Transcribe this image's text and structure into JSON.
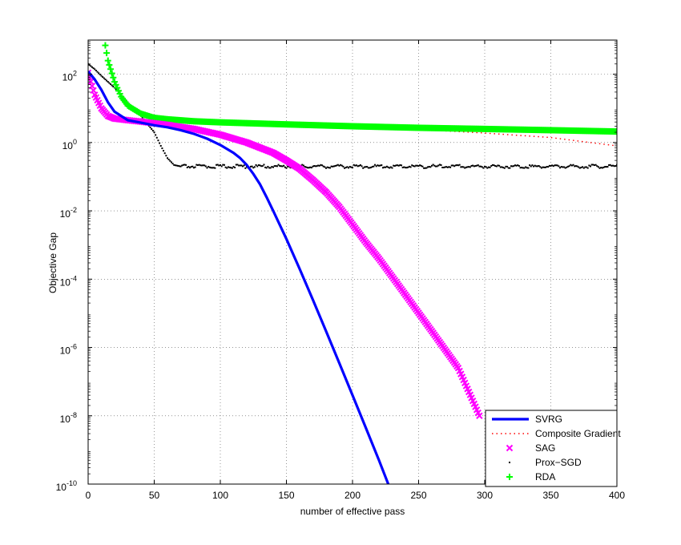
{
  "chart_data": {
    "type": "line",
    "title": "",
    "xlabel": "number of effective pass",
    "ylabel": "Objective Gap",
    "xlim": [
      0,
      400
    ],
    "ylim_log10": [
      -10,
      3
    ],
    "yscale": "log",
    "grid": true,
    "legend_position": "bottom-right",
    "x_ticks": [
      "0",
      "50",
      "100",
      "150",
      "200",
      "250",
      "300",
      "350",
      "400"
    ],
    "y_ticks": [
      {
        "base": "10",
        "exp": "2"
      },
      {
        "base": "10",
        "exp": "0"
      },
      {
        "base": "10",
        "exp": "-2"
      },
      {
        "base": "10",
        "exp": "-4"
      },
      {
        "base": "10",
        "exp": "-6"
      },
      {
        "base": "10",
        "exp": "-8"
      },
      {
        "base": "10",
        "exp": "-10"
      }
    ],
    "series": [
      {
        "name": "SVRG",
        "color": "#0000ff",
        "style": "solid-thick",
        "x": [
          0,
          5,
          10,
          15,
          20,
          30,
          40,
          50,
          60,
          70,
          80,
          90,
          100,
          110,
          115,
          120,
          125,
          130,
          135,
          140,
          150,
          160,
          170,
          180,
          190,
          200,
          210,
          220,
          227
        ],
        "y": [
          120,
          70,
          35,
          15,
          8,
          4.5,
          3.8,
          3.2,
          2.8,
          2.3,
          1.8,
          1.3,
          0.85,
          0.5,
          0.35,
          0.22,
          0.12,
          0.06,
          0.025,
          0.01,
          0.0015,
          0.0002,
          2.5e-05,
          3e-06,
          3.5e-07,
          4e-08,
          4.5e-09,
          5e-10,
          1e-10
        ]
      },
      {
        "name": "Composite Gradient",
        "color": "#ff0000",
        "style": "dotted",
        "x": [
          0,
          5,
          10,
          15,
          20,
          30,
          40,
          60,
          100,
          150,
          200,
          250,
          300,
          350,
          400
        ],
        "y": [
          100,
          30,
          12,
          7,
          5.5,
          4.8,
          4.4,
          4,
          3.6,
          3.2,
          2.8,
          2.4,
          1.9,
          1.4,
          0.8
        ]
      },
      {
        "name": "SAG",
        "color": "#ff00ff",
        "style": "x-markers",
        "x": [
          0,
          5,
          10,
          15,
          20,
          30,
          40,
          60,
          80,
          100,
          120,
          140,
          150,
          160,
          170,
          180,
          190,
          200,
          210,
          220,
          240,
          260,
          280,
          296
        ],
        "y": [
          110,
          25,
          10,
          6,
          5,
          4.5,
          4.1,
          3.3,
          2.5,
          1.7,
          1,
          0.5,
          0.3,
          0.17,
          0.08,
          0.035,
          0.013,
          0.004,
          0.0012,
          0.0004,
          3.5e-05,
          3e-06,
          2.5e-07,
          1e-08
        ]
      },
      {
        "name": "Prox−SGD",
        "color": "#000000",
        "style": "dot-markers",
        "x": [
          0,
          5,
          10,
          20,
          30,
          40,
          50,
          55,
          60,
          65,
          70,
          100,
          150,
          200,
          250,
          300,
          350,
          400
        ],
        "y": [
          200,
          140,
          90,
          40,
          15,
          6,
          2,
          0.8,
          0.35,
          0.22,
          0.2,
          0.2,
          0.2,
          0.2,
          0.2,
          0.2,
          0.2,
          0.2
        ]
      },
      {
        "name": "RDA",
        "color": "#00ff00",
        "style": "plus-markers",
        "x": [
          13,
          15,
          20,
          25,
          30,
          40,
          50,
          60,
          80,
          100,
          150,
          200,
          250,
          300,
          350,
          400
        ],
        "y": [
          700,
          250,
          60,
          22,
          12,
          7,
          5.3,
          4.8,
          4.2,
          3.9,
          3.4,
          3,
          2.7,
          2.5,
          2.3,
          2.1
        ]
      }
    ]
  }
}
